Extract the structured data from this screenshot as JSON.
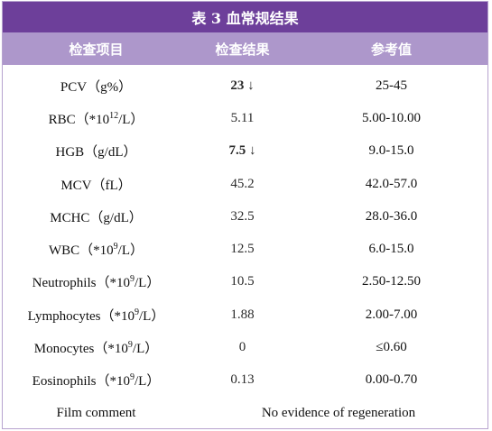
{
  "title": "表 3  血常规结果",
  "headers": {
    "item": "检查项目",
    "result": "检查结果",
    "reference": "参考值"
  },
  "rows": [
    {
      "pre": "PCV（g%）",
      "sup": "",
      "post": "",
      "value": "23 ↓",
      "flag": true,
      "reference": "25-45"
    },
    {
      "pre": "RBC（*10",
      "sup": "12",
      "post": "/L）",
      "value": "5.11",
      "flag": false,
      "reference": "5.00-10.00"
    },
    {
      "pre": "HGB（g/dL）",
      "sup": "",
      "post": "",
      "value": "7.5 ↓",
      "flag": true,
      "reference": "9.0-15.0"
    },
    {
      "pre": "MCV（fL）",
      "sup": "",
      "post": "",
      "value": "45.2",
      "flag": false,
      "reference": "42.0-57.0"
    },
    {
      "pre": "MCHC（g/dL）",
      "sup": "",
      "post": "",
      "value": "32.5",
      "flag": false,
      "reference": "28.0-36.0"
    },
    {
      "pre": "WBC（*10",
      "sup": "9",
      "post": "/L）",
      "value": "12.5",
      "flag": false,
      "reference": "6.0-15.0"
    },
    {
      "pre": "Neutrophils（*10",
      "sup": "9",
      "post": "/L）",
      "value": "10.5",
      "flag": false,
      "reference": "2.50-12.50"
    },
    {
      "pre": "Lymphocytes（*10",
      "sup": "9",
      "post": "/L）",
      "value": "1.88",
      "flag": false,
      "reference": "2.00-7.00"
    },
    {
      "pre": "Monocytes（*10",
      "sup": "9",
      "post": "/L）",
      "value": "0",
      "flag": false,
      "reference": "≤0.60"
    },
    {
      "pre": "Eosinophils（*10",
      "sup": "9",
      "post": "/L）",
      "value": "0.13",
      "flag": false,
      "reference": "0.00-0.70"
    }
  ],
  "comment": {
    "label": "Film comment",
    "value": "No evidence of regeneration"
  }
}
